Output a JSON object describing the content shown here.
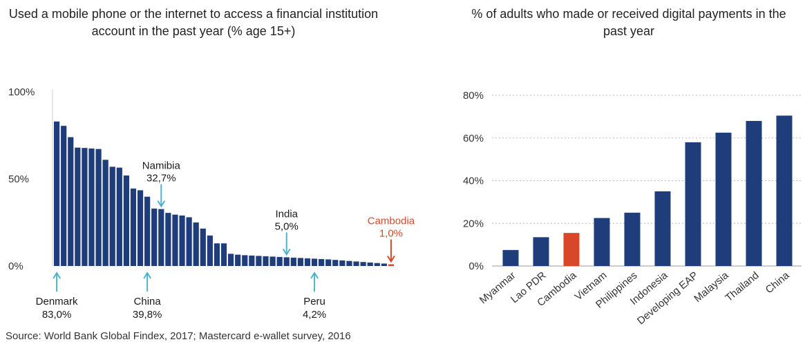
{
  "left_title": "Used a mobile phone or the internet to access a financial institution account in the past year (% age 15+)",
  "right_title": "% of adults who made or received digital payments in the past year",
  "source": "Source: World Bank Global Findex, 2017; Mastercard e-wallet survey, 2016",
  "colors": {
    "bar": "#1f3d7a",
    "highlight": "#d9472b",
    "arrow": "#4bb3cc",
    "grid": "#bbbbbb"
  },
  "chart_data": [
    {
      "type": "bar",
      "title": "Used a mobile phone or the internet to access a financial institution account in the past year (% age 15+)",
      "ylim": [
        0,
        100
      ],
      "yticks": [
        "0%",
        "50%",
        "100%"
      ],
      "ytick_values": [
        0,
        50,
        100
      ],
      "values": [
        83.0,
        80.5,
        74.0,
        68.0,
        67.8,
        67.5,
        67.2,
        61.0,
        57.0,
        56.5,
        52.0,
        44.5,
        43.5,
        39.8,
        33.0,
        32.7,
        30.5,
        29.5,
        29.0,
        28.0,
        25.0,
        21.5,
        17.5,
        13.0,
        13.0,
        7.0,
        6.5,
        6.2,
        6.0,
        5.8,
        5.6,
        5.4,
        5.2,
        5.0,
        4.8,
        4.6,
        4.4,
        4.2,
        4.0,
        3.8,
        3.5,
        3.2,
        2.9,
        2.6,
        2.3,
        2.0,
        1.7,
        1.4,
        1.0
      ],
      "annotations": [
        {
          "label": "Denmark",
          "value": "83,0%",
          "index": 0,
          "side": "below"
        },
        {
          "label": "China",
          "value": "39,8%",
          "index": 13,
          "side": "below"
        },
        {
          "label": "Namibia",
          "value": "32,7%",
          "index": 15,
          "side": "above"
        },
        {
          "label": "India",
          "value": "5,0%",
          "index": 33,
          "side": "above"
        },
        {
          "label": "Peru",
          "value": "4,2%",
          "index": 37,
          "side": "below"
        },
        {
          "label": "Cambodia",
          "value": "1,0%",
          "index": 48,
          "side": "above",
          "highlight": true
        }
      ]
    },
    {
      "type": "bar",
      "title": "% of adults who made or received digital payments in the past year",
      "categories": [
        "Myanmar",
        "Lao PDR",
        "Cambodia",
        "Vietnam",
        "Philippines",
        "Indonesia",
        "Developing EAP",
        "Malaysia",
        "Thailand",
        "China"
      ],
      "values": [
        7.5,
        13.5,
        15.5,
        22.5,
        25.0,
        35.0,
        58.0,
        62.5,
        68.0,
        70.5
      ],
      "highlight": "Cambodia",
      "ylim": [
        0,
        80
      ],
      "yticks": [
        "0%",
        "20%",
        "40%",
        "60%",
        "80%"
      ],
      "ytick_values": [
        0,
        20,
        40,
        60,
        80
      ],
      "grid": true
    }
  ]
}
